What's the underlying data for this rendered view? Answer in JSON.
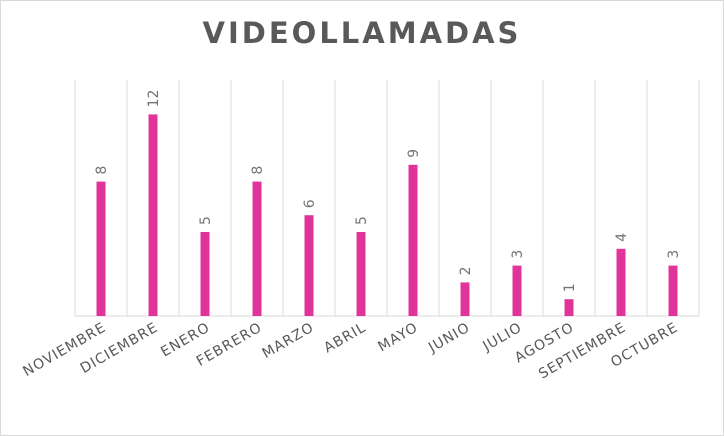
{
  "chart_data": {
    "type": "bar",
    "title": "VIDEOLLAMADAS",
    "xlabel": "",
    "ylabel": "",
    "categories": [
      "NOVIEMBRE",
      "DICIEMBRE",
      "ENERO",
      "FEBRERO",
      "MARZO",
      "ABRIL",
      "MAYO",
      "JUNIO",
      "JULIO",
      "AGOSTO",
      "SEPTIEMBRE",
      "OCTUBRE"
    ],
    "values": [
      8,
      12,
      5,
      8,
      6,
      5,
      9,
      2,
      3,
      1,
      4,
      3
    ],
    "ylim": [
      0,
      14
    ],
    "grid": true,
    "legend": "none",
    "colors": {
      "bar": "#e0349b",
      "text": "#595959",
      "grid": "#d9d9d9"
    }
  }
}
